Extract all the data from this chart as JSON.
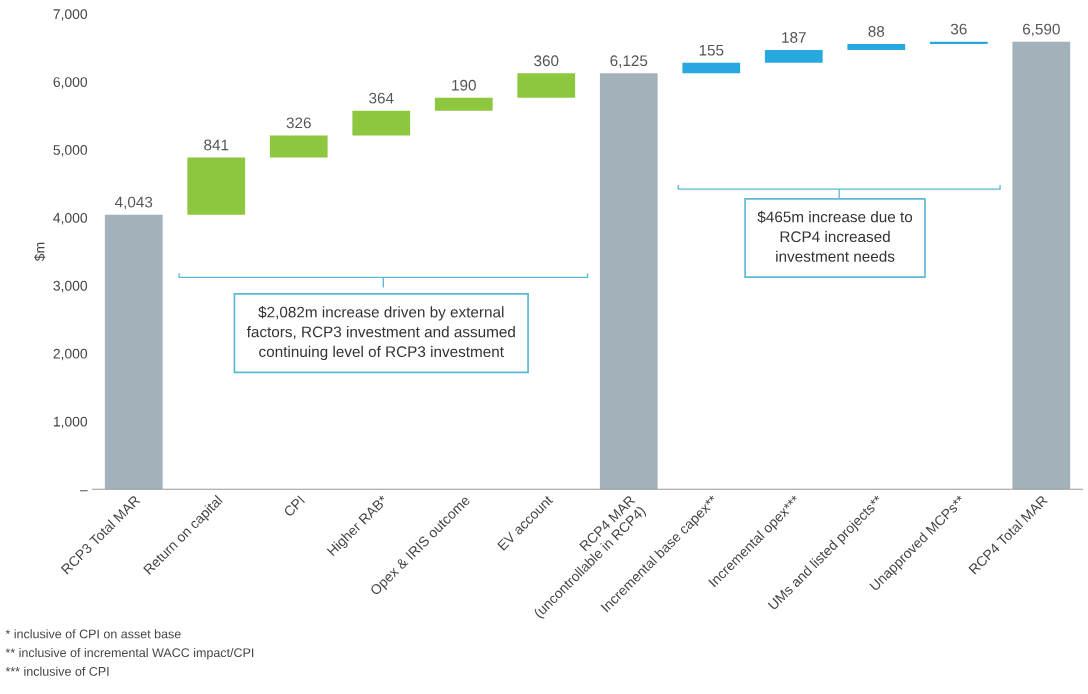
{
  "chart_data": {
    "type": "bar",
    "ylabel": "$m",
    "categories": [
      "RCP3 Total MAR",
      "Return on capital",
      "CPI",
      "Higher RAB*",
      "Opex & IRIS outcome",
      "EV account",
      "RCP4 MAR\n(uncontrollable in RCP4)",
      "Incremental base capex**",
      "Incremental opex***",
      "UMs and listed projects**",
      "Unapproved MCPs**",
      "RCP4 Total MAR"
    ],
    "values": [
      4043,
      841,
      326,
      364,
      190,
      360,
      6125,
      155,
      187,
      88,
      36,
      6590
    ],
    "base": [
      0,
      4043,
      4884,
      5210,
      5574,
      5764,
      0,
      6125,
      6280,
      6467,
      6555,
      0
    ],
    "colors": [
      "#a3b1ba",
      "#8dc63f",
      "#8dc63f",
      "#8dc63f",
      "#8dc63f",
      "#8dc63f",
      "#a3b1ba",
      "#29a8e0",
      "#29a8e0",
      "#29a8e0",
      "#29a8e0",
      "#a3b1ba"
    ],
    "value_labels": [
      "4,043",
      "841",
      "326",
      "364",
      "190",
      "360",
      "6,125",
      "155",
      "187",
      "88",
      "36",
      "6,590"
    ],
    "ylim": [
      0,
      7000
    ],
    "yticks": [
      {
        "value": 0,
        "label": "–"
      },
      {
        "value": 1000,
        "label": "1,000"
      },
      {
        "value": 2000,
        "label": "2,000"
      },
      {
        "value": 3000,
        "label": "3,000"
      },
      {
        "value": 4000,
        "label": "4,000"
      },
      {
        "value": 5000,
        "label": "5,000"
      },
      {
        "value": 6000,
        "label": "6,000"
      },
      {
        "value": 7000,
        "label": "7,000"
      }
    ],
    "grid": false,
    "legend": false,
    "annotations": [
      "$2,082m increase driven by external\nfactors, RCP3 investment and assumed\ncontinuing level of RCP3 investment",
      "$465m increase due to\nRCP4 increased\ninvestment needs",
      "* inclusive of CPI on asset base",
      "** inclusive of incremental WACC impact/CPI",
      "*** inclusive of CPI"
    ]
  }
}
